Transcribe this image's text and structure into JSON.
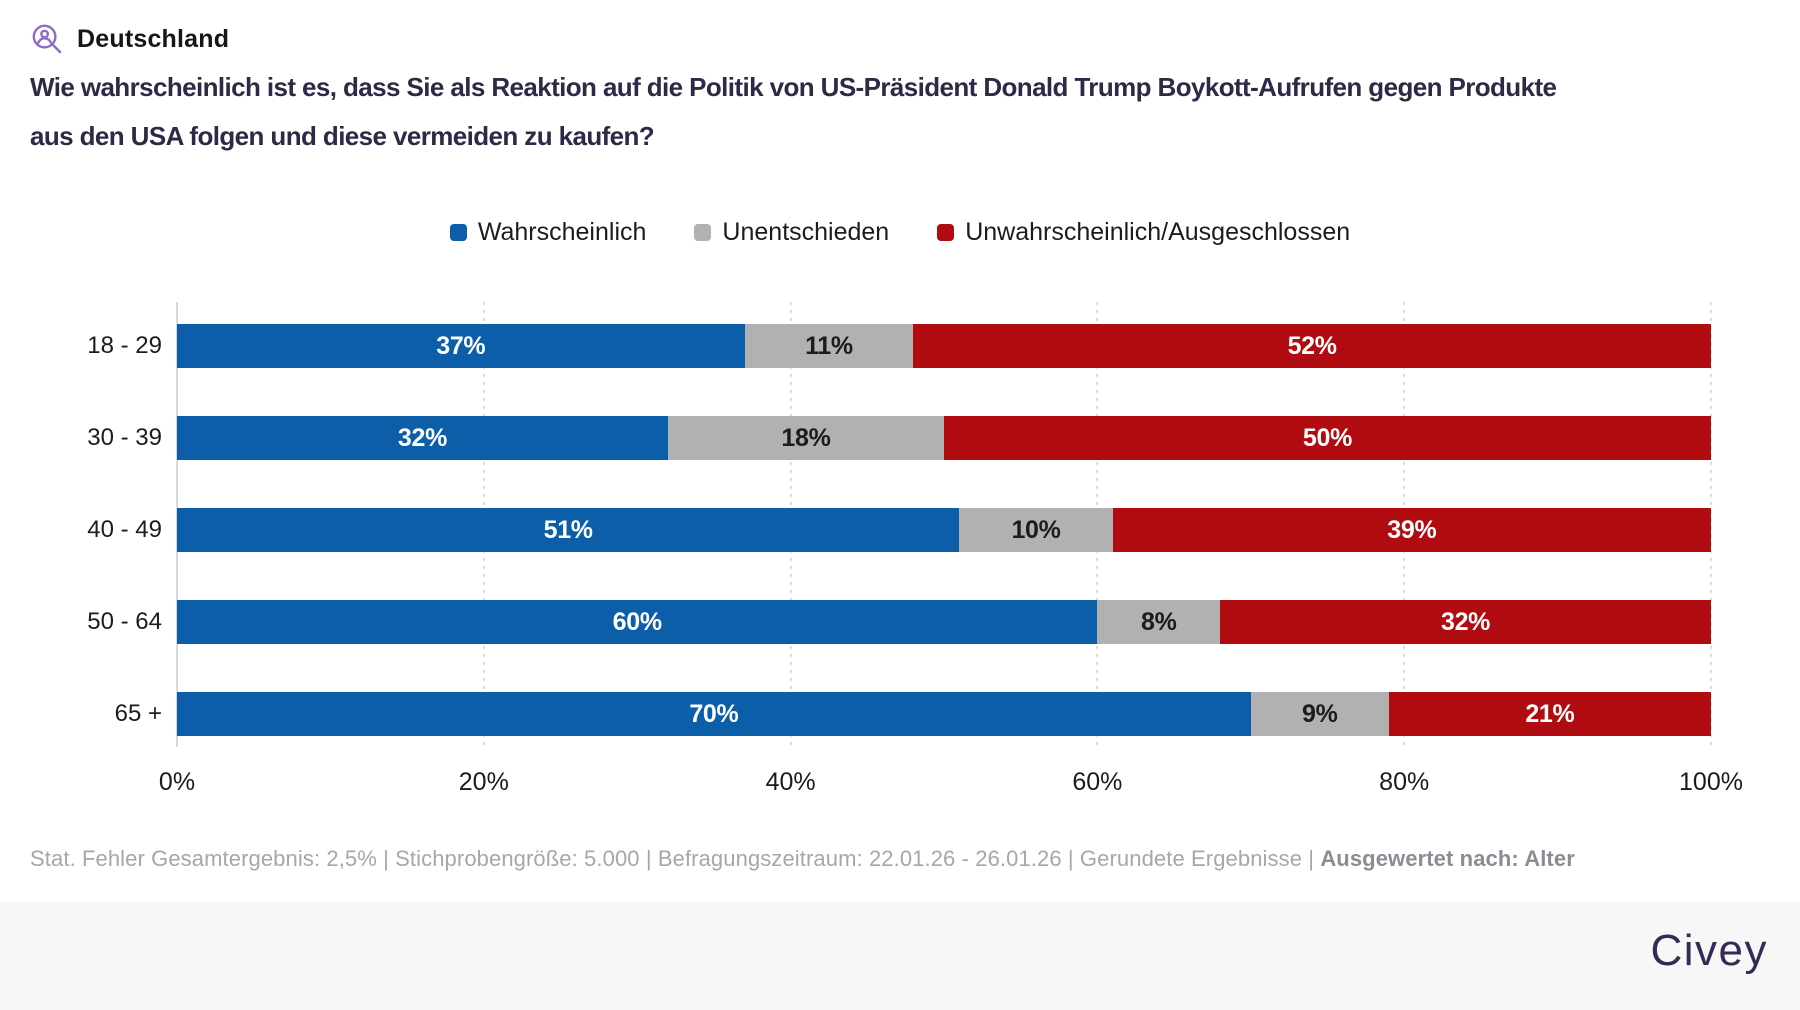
{
  "header": {
    "region": "Deutschland"
  },
  "title": {
    "lines": [
      "Wie wahrscheinlich ist es, dass Sie als Reaktion auf die Politik von US-Präsident Donald Trump Boykott-Aufrufen gegen Produkte",
      "aus den USA folgen und diese vermeiden zu kaufen?"
    ]
  },
  "chart_data": {
    "type": "bar",
    "stacked": true,
    "orientation": "horizontal",
    "title": "Wie wahrscheinlich ist es, dass Sie als Reaktion auf die Politik von US-Präsident Donald Trump Boykott-Aufrufen gegen Produkte aus den USA folgen und diese vermeiden zu kaufen?",
    "categories": [
      "18 - 29",
      "30 - 39",
      "40 - 49",
      "50 - 64",
      "65 +"
    ],
    "series": [
      {
        "name": "Wahrscheinlich",
        "color": "#0d5ea8",
        "text_color": "#ffffff",
        "values": [
          37,
          32,
          51,
          60,
          70
        ]
      },
      {
        "name": "Unentschieden",
        "color": "#b1b1b1",
        "text_color": "#1c1c1c",
        "values": [
          11,
          18,
          10,
          8,
          9
        ]
      },
      {
        "name": "Unwahrscheinlich/Ausgeschlossen",
        "color": "#b00b10",
        "text_color": "#ffffff",
        "values": [
          52,
          50,
          39,
          32,
          21
        ]
      }
    ],
    "value_suffix": "%",
    "x_ticks": [
      {
        "label": "0%",
        "value": 0
      },
      {
        "label": "20%",
        "value": 20
      },
      {
        "label": "40%",
        "value": 40
      },
      {
        "label": "60%",
        "value": 60
      },
      {
        "label": "80%",
        "value": 80
      },
      {
        "label": "100%",
        "value": 100
      }
    ],
    "xlim": [
      0,
      100
    ],
    "grid": "vertical-dashed",
    "legend_position": "top-center"
  },
  "footer": {
    "disclaimer_regular": "Stat. Fehler Gesamtergebnis: 2,5% | Stichprobengröße: 5.000 | Befragungszeitraum: 22.01.26 - 26.01.26 | Gerundete Ergebnisse | ",
    "disclaimer_bold": "Ausgewertet nach: Alter",
    "logo_text": "Civey"
  },
  "colors": {
    "title_text": "#2e2946",
    "icon_purple": "#8e6bc5",
    "logo_purple": "#362a55",
    "footer_band": "#f7f7f8"
  }
}
